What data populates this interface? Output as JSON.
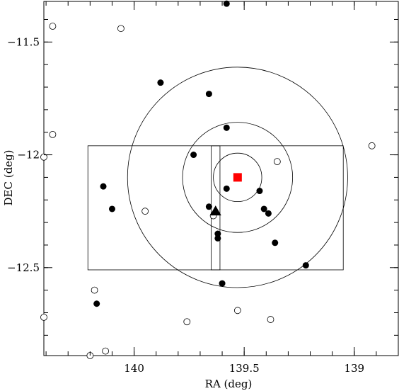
{
  "chart_data": {
    "type": "scatter",
    "xlabel": "RA (deg)",
    "ylabel": "DEC (deg)",
    "x_axis": {
      "reversed": true,
      "range": [
        140.41,
        138.8
      ],
      "ticks": [
        140,
        139.5,
        139
      ],
      "tick_labels": [
        "140",
        "139.5",
        "139"
      ]
    },
    "y_axis": {
      "range": [
        -12.89,
        -11.32
      ],
      "ticks": [
        -12.5,
        -12,
        -11.5
      ],
      "tick_labels": [
        "−12.5",
        "−12",
        "−11.5"
      ]
    },
    "grid": false,
    "colors": {
      "axis": "#000000",
      "center_marker": "#ff0000"
    },
    "filled_points": [
      [
        139.58,
        -11.33
      ],
      [
        139.88,
        -11.68
      ],
      [
        139.66,
        -11.73
      ],
      [
        139.58,
        -11.88
      ],
      [
        139.73,
        -12.0
      ],
      [
        140.14,
        -12.14
      ],
      [
        139.43,
        -12.16
      ],
      [
        139.58,
        -12.15
      ],
      [
        140.1,
        -12.24
      ],
      [
        139.66,
        -12.23
      ],
      [
        139.41,
        -12.24
      ],
      [
        139.39,
        -12.26
      ],
      [
        139.62,
        -12.35
      ],
      [
        139.62,
        -12.37
      ],
      [
        139.36,
        -12.39
      ],
      [
        139.22,
        -12.49
      ],
      [
        139.6,
        -12.57
      ],
      [
        140.17,
        -12.66
      ]
    ],
    "open_points": [
      [
        140.37,
        -11.43
      ],
      [
        140.06,
        -11.44
      ],
      [
        140.37,
        -11.91
      ],
      [
        140.41,
        -12.01
      ],
      [
        138.92,
        -11.96
      ],
      [
        139.35,
        -12.03
      ],
      [
        139.95,
        -12.25
      ],
      [
        139.64,
        -12.27
      ],
      [
        140.18,
        -12.6
      ],
      [
        140.41,
        -12.72
      ],
      [
        139.76,
        -12.74
      ],
      [
        139.53,
        -12.69
      ],
      [
        139.38,
        -12.73
      ],
      [
        140.13,
        -12.87
      ],
      [
        140.2,
        -12.89
      ]
    ],
    "center": [
      139.53,
      -12.1
    ],
    "triangle": [
      139.63,
      -12.25
    ],
    "circles": [
      {
        "center": [
          139.53,
          -12.1
        ],
        "radius": 0.11
      },
      {
        "center": [
          139.53,
          -12.1
        ],
        "radius": 0.25
      },
      {
        "center": [
          139.53,
          -12.1
        ],
        "radius": 0.5
      }
    ],
    "rectangles": [
      {
        "x": [
          140.21,
          139.05
        ],
        "y": [
          -12.51,
          -11.96
        ]
      },
      {
        "x": [
          139.65,
          139.61
        ],
        "y": [
          -12.51,
          -11.96
        ]
      }
    ]
  }
}
